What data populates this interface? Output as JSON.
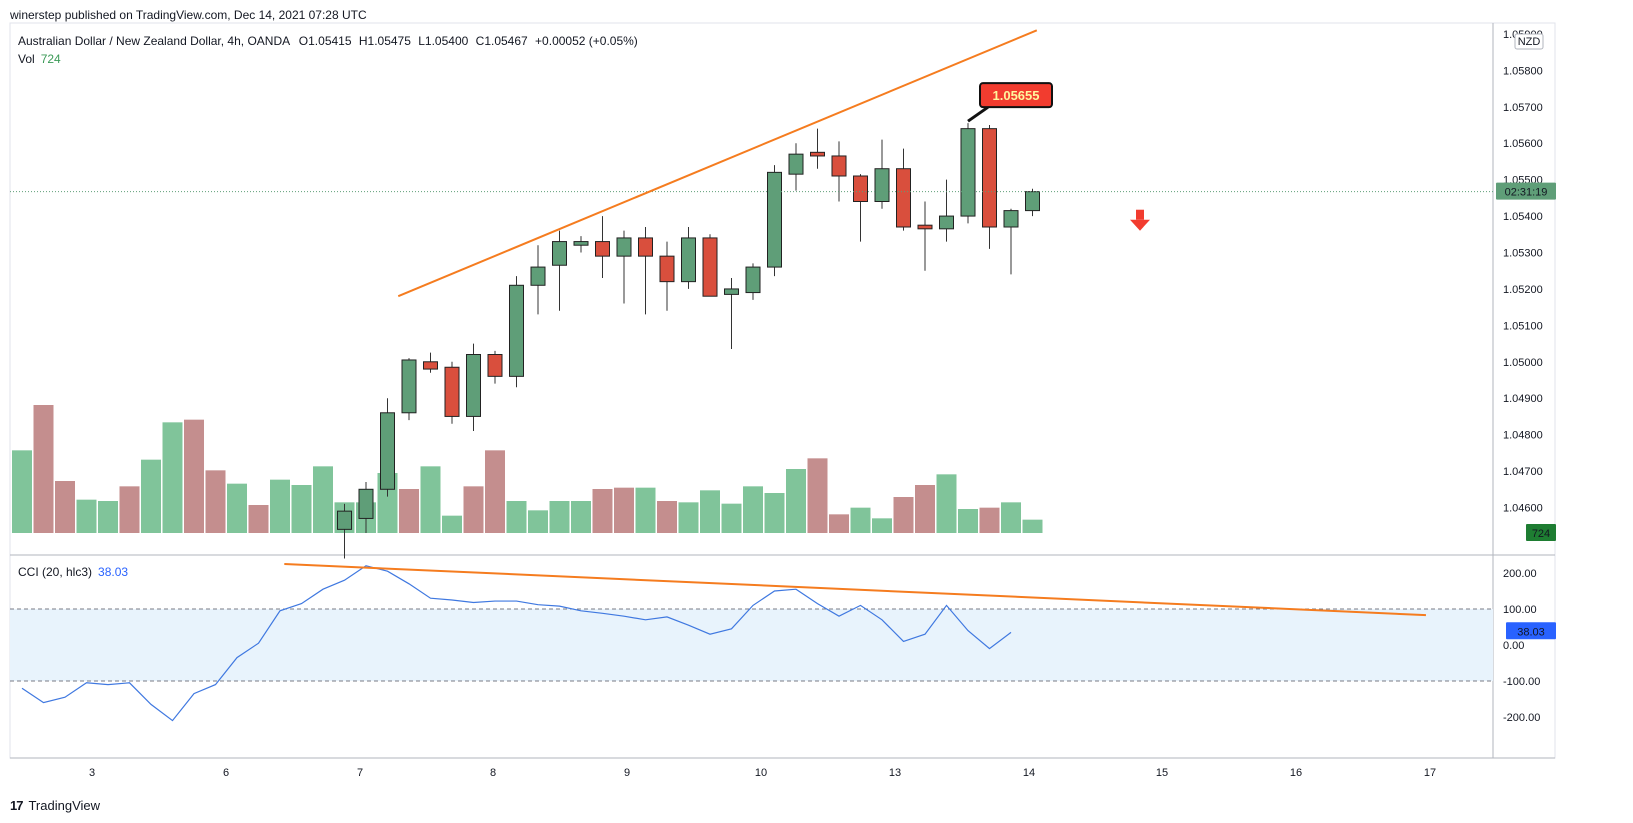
{
  "header": {
    "published": "winerstep published on TradingView.com, Dec 14, 2021 07:28 UTC"
  },
  "legend": {
    "symbol": "Australian Dollar / New Zealand Dollar, 4h, OANDA",
    "open": "O1.05415",
    "high": "H1.05475",
    "low": "L1.05400",
    "close": "C1.05467",
    "change": "+0.00052 (+0.05%)",
    "vol_label": "Vol",
    "vol_value": "724",
    "cci_label": "CCI (20, hlc3)",
    "cci_value": "38.03"
  },
  "price_axis": {
    "currency": "NZD",
    "countdown": "02:31:19",
    "vol_badge": "724",
    "cci_badge": "38.03"
  },
  "annotation": {
    "high_label": "1.05655"
  },
  "footer": {
    "brand": "TradingView"
  },
  "colors": {
    "up": "#5f9e78",
    "down": "#d94f3d",
    "vol_up": "#80c49a",
    "vol_down": "#c48e8e",
    "trendline": "#f57c1f",
    "cci": "#3f78e0",
    "band": "#e8f3fc"
  },
  "chart_data": [
    {
      "type": "candlestick",
      "name": "Australian Dollar / New Zealand Dollar",
      "x_labels": [
        "3",
        "6",
        "7",
        "8",
        "9",
        "10",
        "13",
        "14",
        "15",
        "16",
        "17"
      ],
      "y_ticks": [
        "1.04600",
        "1.04700",
        "1.04800",
        "1.04900",
        "1.05000",
        "1.05100",
        "1.05200",
        "1.05300",
        "1.05400",
        "1.05500",
        "1.05600",
        "1.05700",
        "1.05800",
        "1.05900"
      ],
      "ylim": [
        1.0453,
        1.0593
      ],
      "last_price": 1.05467,
      "candles": [
        {
          "o": 1.0454,
          "h": 1.0461,
          "l": 1.0446,
          "c": 1.0459
        },
        {
          "o": 1.0457,
          "h": 1.0467,
          "l": 1.0453,
          "c": 1.0465
        },
        {
          "o": 1.0465,
          "h": 1.049,
          "l": 1.0463,
          "c": 1.0486
        },
        {
          "o": 1.0486,
          "h": 1.0501,
          "l": 1.0484,
          "c": 1.05005
        },
        {
          "o": 1.05,
          "h": 1.05025,
          "l": 1.0497,
          "c": 1.0498
        },
        {
          "o": 1.04985,
          "h": 1.05,
          "l": 1.0483,
          "c": 1.0485
        },
        {
          "o": 1.0485,
          "h": 1.0505,
          "l": 1.0481,
          "c": 1.0502
        },
        {
          "o": 1.0502,
          "h": 1.0503,
          "l": 1.0494,
          "c": 1.0496
        },
        {
          "o": 1.0496,
          "h": 1.05235,
          "l": 1.0493,
          "c": 1.0521
        },
        {
          "o": 1.0521,
          "h": 1.0532,
          "l": 1.0513,
          "c": 1.0526
        },
        {
          "o": 1.05265,
          "h": 1.0536,
          "l": 1.0514,
          "c": 1.0533
        },
        {
          "o": 1.0532,
          "h": 1.05345,
          "l": 1.053,
          "c": 1.0533
        },
        {
          "o": 1.0533,
          "h": 1.054,
          "l": 1.0523,
          "c": 1.0529
        },
        {
          "o": 1.0529,
          "h": 1.0536,
          "l": 1.0516,
          "c": 1.0534
        },
        {
          "o": 1.0534,
          "h": 1.0537,
          "l": 1.0513,
          "c": 1.0529
        },
        {
          "o": 1.0529,
          "h": 1.0533,
          "l": 1.0514,
          "c": 1.0522
        },
        {
          "o": 1.0522,
          "h": 1.0537,
          "l": 1.052,
          "c": 1.0534
        },
        {
          "o": 1.0534,
          "h": 1.0535,
          "l": 1.0518,
          "c": 1.0518
        },
        {
          "o": 1.05185,
          "h": 1.0523,
          "l": 1.05035,
          "c": 1.052
        },
        {
          "o": 1.0519,
          "h": 1.0527,
          "l": 1.0517,
          "c": 1.0526
        },
        {
          "o": 1.0526,
          "h": 1.0554,
          "l": 1.05235,
          "c": 1.0552
        },
        {
          "o": 1.05515,
          "h": 1.056,
          "l": 1.0547,
          "c": 1.0557
        },
        {
          "o": 1.05575,
          "h": 1.0564,
          "l": 1.0553,
          "c": 1.05565
        },
        {
          "o": 1.05565,
          "h": 1.05605,
          "l": 1.0544,
          "c": 1.0551
        },
        {
          "o": 1.0551,
          "h": 1.05515,
          "l": 1.0533,
          "c": 1.0544
        },
        {
          "o": 1.0544,
          "h": 1.0561,
          "l": 1.0542,
          "c": 1.0553
        },
        {
          "o": 1.0553,
          "h": 1.05585,
          "l": 1.0536,
          "c": 1.0537
        },
        {
          "o": 1.05375,
          "h": 1.0544,
          "l": 1.0525,
          "c": 1.05365
        },
        {
          "o": 1.05365,
          "h": 1.055,
          "l": 1.0533,
          "c": 1.054
        },
        {
          "o": 1.054,
          "h": 1.05655,
          "l": 1.0538,
          "c": 1.0564
        },
        {
          "o": 1.0564,
          "h": 1.0565,
          "l": 1.0531,
          "c": 1.0537
        },
        {
          "o": 1.0537,
          "h": 1.0542,
          "l": 1.0524,
          "c": 1.05415
        },
        {
          "o": 1.05415,
          "h": 1.05475,
          "l": 1.054,
          "c": 1.05467
        }
      ],
      "first_candle_index": 15
    },
    {
      "type": "bar",
      "name": "Vol",
      "values": [
        62,
        96,
        39,
        25,
        24,
        35,
        55,
        83,
        85,
        47,
        37,
        21,
        40,
        36,
        50,
        23,
        23,
        45,
        33,
        50,
        13,
        35,
        62,
        24,
        17,
        24,
        24,
        33,
        34,
        34,
        24,
        23,
        32,
        22,
        35,
        30,
        48,
        56,
        14,
        19,
        11,
        27,
        36,
        44,
        18,
        19,
        23,
        10
      ],
      "up": [
        true,
        false,
        false,
        true,
        true,
        false,
        true,
        true,
        false,
        false,
        true,
        false,
        true,
        true,
        true,
        true,
        true,
        true,
        false,
        true,
        true,
        false,
        false,
        true,
        true,
        true,
        true,
        false,
        false,
        true,
        false,
        true,
        true,
        true,
        true,
        true,
        true,
        false,
        false,
        true,
        true,
        false,
        false,
        true,
        true,
        false,
        true,
        true
      ],
      "last_value": 724
    },
    {
      "type": "line",
      "name": "CCI (20, hlc3)",
      "y_ticks": [
        "200.00",
        "100.00",
        "0.00",
        "-100.00",
        "-200.00"
      ],
      "ylim": [
        -250,
        250
      ],
      "band": [
        -100,
        100
      ],
      "values": [
        -120,
        -160,
        -145,
        -105,
        -110,
        -105,
        -165,
        -210,
        -135,
        -110,
        -35,
        5,
        95,
        115,
        155,
        180,
        220,
        205,
        170,
        130,
        125,
        118,
        122,
        122,
        112,
        108,
        95,
        88,
        80,
        70,
        78,
        55,
        30,
        45,
        110,
        150,
        155,
        115,
        80,
        110,
        70,
        10,
        30,
        110,
        40,
        -10,
        35
      ],
      "last_value": 38.03
    }
  ]
}
